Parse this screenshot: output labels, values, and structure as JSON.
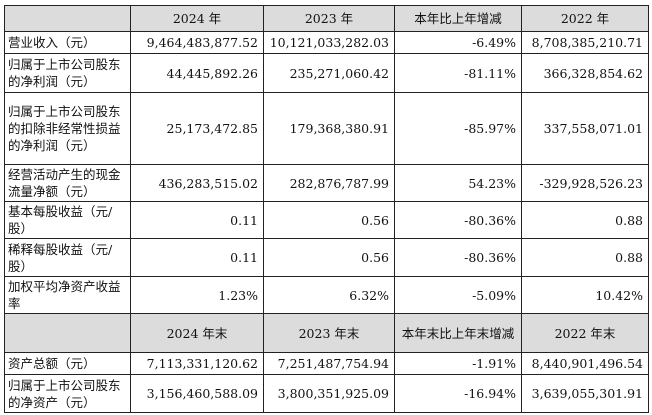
{
  "header1": [
    "",
    "2024 年",
    "2023 年",
    "本年比上年增减",
    "2022 年"
  ],
  "rows1": [
    {
      "label": "营业收入（元）",
      "values": [
        "9,464,483,877.52",
        "10,121,033,282.03",
        "-6.49%",
        "8,708,385,210.71"
      ]
    },
    {
      "label": "归属于上市公司股东的净利润（元）",
      "values": [
        "44,445,892.26",
        "235,271,060.42",
        "-81.11%",
        "366,328,854.62"
      ]
    },
    {
      "label": "归属于上市公司股东的扣除非经常性损益的净利润（元）",
      "values": [
        "25,173,472.85",
        "179,368,380.91",
        "-85.97%",
        "337,558,071.01"
      ]
    },
    {
      "label": "经营活动产生的现金流量净额（元）",
      "values": [
        "436,283,515.02",
        "282,876,787.99",
        "54.23%",
        "-329,928,526.23"
      ]
    },
    {
      "label": "基本每股收益（元/股）",
      "values": [
        "0.11",
        "0.56",
        "-80.36%",
        "0.88"
      ]
    },
    {
      "label": "稀释每股收益（元/股）",
      "values": [
        "0.11",
        "0.56",
        "-80.36%",
        "0.88"
      ]
    },
    {
      "label": "加权平均净资产收益率",
      "values": [
        "1.23%",
        "6.32%",
        "-5.09%",
        "10.42%"
      ]
    }
  ],
  "header2": [
    "",
    "2024 年末",
    "2023 年末",
    "本年末比上年末增减",
    "2022 年末"
  ],
  "rows2": [
    {
      "label": "资产总额（元）",
      "values": [
        "7,113,331,120.62",
        "7,251,487,754.94",
        "-1.91%",
        "8,440,901,496.54"
      ]
    },
    {
      "label": "归属于上市公司股东的净资产（元）",
      "values": [
        "3,156,460,588.09",
        "3,800,351,925.09",
        "-16.94%",
        "3,639,055,301.91"
      ]
    }
  ]
}
